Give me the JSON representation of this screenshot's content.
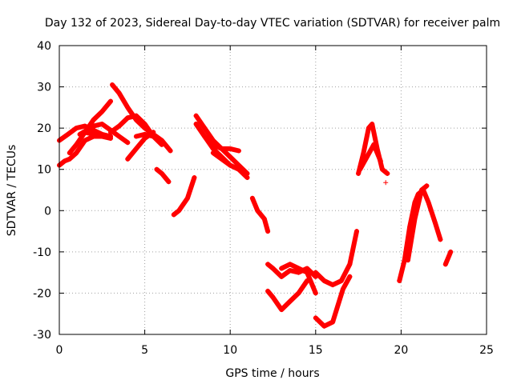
{
  "chart_data": {
    "type": "scatter",
    "title": "Day 132 of 2023, Sidereal Day-to-day VTEC variation (SDTVAR) for receiver palm",
    "xlabel": "GPS time / hours",
    "ylabel": "SDTVAR / TECUs",
    "xlim": [
      0,
      25
    ],
    "ylim": [
      -30,
      40
    ],
    "xticks": [
      "0",
      "5",
      "10",
      "15",
      "20",
      "25"
    ],
    "yticks": [
      "-30",
      "-20",
      "-10",
      "0",
      "10",
      "20",
      "30",
      "40"
    ],
    "grid": true,
    "marker": "+",
    "color": "#ff0000",
    "series": [
      {
        "name": "arc-1",
        "x": [
          0.0,
          0.5,
          1.0,
          1.5,
          2.0,
          2.5,
          3.0
        ],
        "y": [
          17,
          18.5,
          20,
          20.5,
          19.5,
          18.5,
          18
        ]
      },
      {
        "name": "arc-2",
        "x": [
          0.0,
          0.3,
          0.6,
          1.0,
          1.5,
          2.0,
          2.5,
          3.0
        ],
        "y": [
          11,
          12,
          12.5,
          14,
          17,
          18,
          18,
          17.5
        ]
      },
      {
        "name": "arc-3",
        "x": [
          0.6,
          1.0,
          1.5,
          2.0,
          2.5,
          3.0
        ],
        "y": [
          14,
          16,
          19,
          22,
          24,
          26.5
        ]
      },
      {
        "name": "arc-4",
        "x": [
          1.2,
          2.0,
          2.5,
          3.0,
          3.5,
          4.0
        ],
        "y": [
          18.5,
          20.5,
          21,
          19.5,
          18,
          16.5
        ]
      },
      {
        "name": "arc-5",
        "x": [
          1.5,
          2.0,
          2.5,
          3.0
        ],
        "y": [
          19,
          18.5,
          18,
          18
        ]
      },
      {
        "name": "arc-6",
        "x": [
          3.1,
          3.5,
          4.0,
          4.5,
          5.0,
          5.5,
          6.0,
          6.5
        ],
        "y": [
          30.5,
          28.5,
          25,
          22,
          20,
          18.5,
          17,
          14.5
        ]
      },
      {
        "name": "arc-7",
        "x": [
          3.0,
          3.5,
          4.0,
          4.5,
          5.0,
          5.5
        ],
        "y": [
          19,
          20.5,
          22.5,
          23,
          21,
          18
        ]
      },
      {
        "name": "arc-8",
        "x": [
          4.0,
          4.5,
          5.0,
          5.5
        ],
        "y": [
          12.5,
          15,
          17.5,
          19
        ]
      },
      {
        "name": "arc-9",
        "x": [
          4.5,
          5.0,
          5.5,
          6.0
        ],
        "y": [
          18,
          18.5,
          18,
          16
        ]
      },
      {
        "name": "arc-10",
        "x": [
          5.7,
          6.0,
          6.4
        ],
        "y": [
          10,
          9,
          7
        ]
      },
      {
        "name": "arc-11",
        "x": [
          6.7,
          7.0,
          7.5,
          7.9
        ],
        "y": [
          -1,
          0,
          3,
          8
        ]
      },
      {
        "name": "arc-12",
        "x": [
          8.0,
          8.5,
          9.0,
          9.5,
          10.0,
          10.5,
          11.0
        ],
        "y": [
          23,
          20,
          17,
          15,
          13,
          11,
          9
        ]
      },
      {
        "name": "arc-13",
        "x": [
          8.0,
          8.5,
          9.0,
          9.5,
          10.0,
          10.5
        ],
        "y": [
          21,
          18,
          15,
          13,
          11,
          10
        ]
      },
      {
        "name": "arc-14",
        "x": [
          8.5,
          9.0,
          9.5,
          10.0,
          10.5
        ],
        "y": [
          18,
          16,
          15,
          15,
          14.5
        ]
      },
      {
        "name": "arc-15",
        "x": [
          9.0,
          9.5,
          10.0,
          10.5,
          11.0
        ],
        "y": [
          14,
          12.5,
          11,
          10,
          8
        ]
      },
      {
        "name": "arc-16",
        "x": [
          11.3,
          11.6,
          12.0,
          12.2
        ],
        "y": [
          3,
          0,
          -2,
          -5
        ]
      },
      {
        "name": "arc-17",
        "x": [
          12.2,
          12.5,
          13.0,
          13.5,
          14.0,
          14.5,
          15.0
        ],
        "y": [
          -13,
          -14,
          -16,
          -14.5,
          -15,
          -14,
          -16
        ]
      },
      {
        "name": "arc-18",
        "x": [
          12.2,
          12.5,
          13.0,
          13.5,
          14.0,
          14.5
        ],
        "y": [
          -19.5,
          -21,
          -24,
          -22,
          -20,
          -17
        ]
      },
      {
        "name": "arc-19",
        "x": [
          13.0,
          13.5,
          14.0,
          14.5,
          15.0
        ],
        "y": [
          -14,
          -13,
          -14,
          -15,
          -20
        ]
      },
      {
        "name": "arc-20",
        "x": [
          15.0,
          15.5,
          16.0,
          16.5,
          17.0,
          17.4
        ],
        "y": [
          -15,
          -17,
          -18,
          -17,
          -13,
          -5
        ]
      },
      {
        "name": "arc-21",
        "x": [
          15.0,
          15.5,
          16.0,
          16.3,
          16.6,
          17.0
        ],
        "y": [
          -26,
          -28,
          -27,
          -23,
          -19,
          -16
        ]
      },
      {
        "name": "arc-22",
        "x": [
          17.5,
          17.8,
          18.1,
          18.3,
          18.6,
          18.9,
          19.2
        ],
        "y": [
          9,
          14,
          20,
          21,
          15,
          10,
          9
        ]
      },
      {
        "name": "arc-23",
        "x": [
          17.6,
          18.0,
          18.4,
          18.8
        ],
        "y": [
          10,
          13,
          16,
          12
        ]
      },
      {
        "name": "arc-24",
        "x": [
          19.9,
          20.2,
          20.5,
          20.8,
          21.0,
          21.3,
          21.6,
          22.0,
          22.3
        ],
        "y": [
          -17,
          -12,
          -4,
          2,
          4,
          5,
          2,
          -3,
          -7
        ]
      },
      {
        "name": "arc-25",
        "x": [
          20.4,
          20.8,
          21.2,
          21.5
        ],
        "y": [
          -12,
          -2,
          5,
          6
        ]
      },
      {
        "name": "arc-26",
        "x": [
          22.6,
          22.8,
          22.9
        ],
        "y": [
          -13,
          -11,
          -10
        ]
      },
      {
        "name": "isolated-point",
        "x": [
          19.1
        ],
        "y": [
          6.8
        ]
      }
    ]
  }
}
